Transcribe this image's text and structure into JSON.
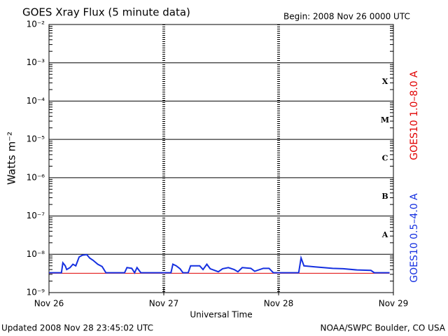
{
  "chart_data": {
    "type": "line",
    "title": "GOES Xray Flux (5 minute data)",
    "subtitle": "Begin:  2008 Nov 26 0000 UTC",
    "xlabel": "Universal Time",
    "ylabel": "Watts m⁻²",
    "footer_left": "Updated 2008 Nov 28 23:45:02 UTC",
    "footer_right": "NOAA/SWPC Boulder, CO USA",
    "log_scale": true,
    "grid": true,
    "xlim": [
      0,
      72
    ],
    "xticks": [
      {
        "value": 0,
        "label": "Nov 26"
      },
      {
        "value": 24,
        "label": "Nov 27"
      },
      {
        "value": 48,
        "label": "Nov 28"
      },
      {
        "value": 72,
        "label": "Nov 29"
      }
    ],
    "ylim": [
      1e-09,
      0.01
    ],
    "yticks": [
      {
        "value": 0.01,
        "label": "10⁻²"
      },
      {
        "value": 0.001,
        "label": "10⁻³"
      },
      {
        "value": 0.0001,
        "label": "10⁻⁴"
      },
      {
        "value": 1e-05,
        "label": "10⁻⁵"
      },
      {
        "value": 1e-06,
        "label": "10⁻⁶"
      },
      {
        "value": 1e-07,
        "label": "10⁻⁷"
      },
      {
        "value": 1e-08,
        "label": "10⁻⁸"
      },
      {
        "value": 1e-09,
        "label": "10⁻⁹"
      }
    ],
    "flare_classes": {
      "labels": [
        "X",
        "M",
        "C",
        "B",
        "A"
      ],
      "lower": [
        0.0001,
        1e-05,
        1e-06,
        1e-07,
        1e-08
      ]
    },
    "series": [
      {
        "name": "GOES10 1.0–8.0 A",
        "color": "#e00000",
        "x": [
          0,
          71.2
        ],
        "values": [
          3.2e-09,
          3.2e-09
        ]
      },
      {
        "name": "GOES10 0.5–4.0 A",
        "color": "#1530e0",
        "x": [
          0,
          2.6,
          2.9,
          3.4,
          3.7,
          4.4,
          5.0,
          5.6,
          6.3,
          7.0,
          7.9,
          8.5,
          9.2,
          10.2,
          11.1,
          11.9,
          15.8,
          16.3,
          17.3,
          17.9,
          18.4,
          19.2,
          25.5,
          25.9,
          26.6,
          27.4,
          28.0,
          29.1,
          29.6,
          31.5,
          32.2,
          33.0,
          33.7,
          35.4,
          36.3,
          37.5,
          38.7,
          39.5,
          40.4,
          42.2,
          43.0,
          44.8,
          46.0,
          46.9,
          52.2,
          52.7,
          53.3,
          55.6,
          59.3,
          61.5,
          64.4,
          67.3,
          68.0,
          71.2
        ],
        "values": [
          3.3e-09,
          3.3e-09,
          6e-09,
          5e-09,
          4e-09,
          4.5e-09,
          5.5e-09,
          5e-09,
          8.5e-09,
          9.5e-09,
          9.8e-09,
          8e-09,
          7e-09,
          5.5e-09,
          4.8e-09,
          3.3e-09,
          3.3e-09,
          4.5e-09,
          4.3e-09,
          3.3e-09,
          4.5e-09,
          3.3e-09,
          3.3e-09,
          5.5e-09,
          5e-09,
          4.2e-09,
          3.3e-09,
          3.3e-09,
          5e-09,
          5e-09,
          4e-09,
          5.5e-09,
          4.2e-09,
          3.5e-09,
          4.2e-09,
          4.5e-09,
          4e-09,
          3.5e-09,
          4.5e-09,
          4.3e-09,
          3.6e-09,
          4.3e-09,
          4.3e-09,
          3.3e-09,
          3.3e-09,
          8e-09,
          5e-09,
          4.7e-09,
          4.3e-09,
          4.2e-09,
          3.9e-09,
          3.8e-09,
          3.3e-09,
          3.3e-09
        ]
      }
    ]
  }
}
